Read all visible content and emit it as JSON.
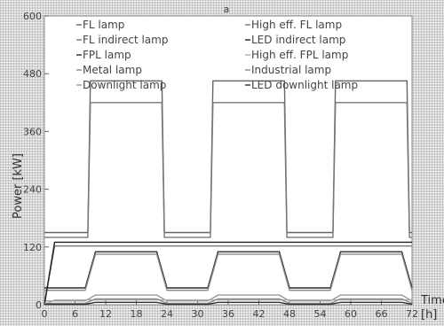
{
  "chart_data": {
    "type": "line",
    "title": "",
    "xlabel": "Time",
    "xlabel_unit": "[h]",
    "ylabel": "Power [kW]",
    "xlim": [
      0,
      72
    ],
    "ylim": [
      0,
      600
    ],
    "xticks": [
      "0",
      "6",
      "12",
      "18",
      "24",
      "30",
      "36",
      "42",
      "48",
      "54",
      "60",
      "66",
      "72"
    ],
    "yticks": [
      "0",
      "120",
      "240",
      "360",
      "480",
      "600"
    ],
    "top_mark": "a",
    "grid": false,
    "legend_position": "top",
    "legend_columns": 2,
    "series": [
      {
        "name": "FL lamp",
        "color": "#666666",
        "x": [
          0,
          8.5,
          9,
          23,
          23.5,
          32.5,
          33,
          47,
          47.5,
          56.5,
          57,
          71,
          71.5,
          72
        ],
        "y": [
          150,
          150,
          465,
          465,
          150,
          150,
          465,
          465,
          150,
          150,
          465,
          465,
          150,
          150
        ]
      },
      {
        "name": "FL indirect lamp",
        "color": "#777777",
        "x": [
          0,
          8.5,
          9,
          23,
          23.5,
          32.5,
          33,
          47,
          47.5,
          56.5,
          57,
          71,
          71.5,
          72
        ],
        "y": [
          140,
          140,
          420,
          420,
          140,
          140,
          420,
          420,
          140,
          140,
          420,
          420,
          140,
          140
        ]
      },
      {
        "name": "FPL lamp",
        "color": "#2a2a2a",
        "x": [
          0,
          8,
          10,
          22,
          24,
          32,
          34,
          46,
          48,
          56,
          58,
          70,
          72
        ],
        "y": [
          35,
          35,
          110,
          110,
          35,
          35,
          110,
          110,
          35,
          35,
          110,
          110,
          35
        ]
      },
      {
        "name": "Metal lamp",
        "color": "#888888",
        "x": [
          0,
          8,
          10,
          22,
          24,
          32,
          34,
          46,
          48,
          56,
          58,
          70,
          72
        ],
        "y": [
          30,
          30,
          105,
          105,
          30,
          30,
          105,
          105,
          30,
          30,
          105,
          105,
          30
        ]
      },
      {
        "name": "Downlight lamp",
        "color": "#999999",
        "x": [
          0,
          8,
          10,
          22,
          24,
          32,
          34,
          46,
          48,
          56,
          58,
          70,
          72
        ],
        "y": [
          8,
          8,
          20,
          20,
          8,
          8,
          20,
          20,
          8,
          8,
          20,
          20,
          8
        ]
      },
      {
        "name": "High eff. FL lamp",
        "color": "#7a7a7a",
        "x": [
          0,
          2,
          72
        ],
        "y": [
          0,
          122,
          122
        ]
      },
      {
        "name": "LED indirect lamp",
        "color": "#1f1f1f",
        "x": [
          0,
          2,
          72
        ],
        "y": [
          0,
          130,
          130
        ]
      },
      {
        "name": "High eff. FPL lamp",
        "color": "#aaaaaa",
        "x": [
          0,
          2,
          72
        ],
        "y": [
          0,
          10,
          10
        ]
      },
      {
        "name": "Industrial lamp",
        "color": "#8a8a8a",
        "x": [
          0,
          8,
          10,
          22,
          24,
          32,
          34,
          46,
          48,
          56,
          58,
          70,
          72
        ],
        "y": [
          3,
          3,
          12,
          12,
          3,
          3,
          12,
          12,
          3,
          3,
          12,
          12,
          3
        ]
      },
      {
        "name": "LED downlight lamp",
        "color": "#333333",
        "x": [
          0,
          8,
          10,
          22,
          24,
          32,
          34,
          46,
          48,
          56,
          58,
          70,
          72
        ],
        "y": [
          1,
          1,
          5,
          5,
          1,
          1,
          5,
          5,
          1,
          1,
          5,
          5,
          1
        ]
      }
    ]
  }
}
